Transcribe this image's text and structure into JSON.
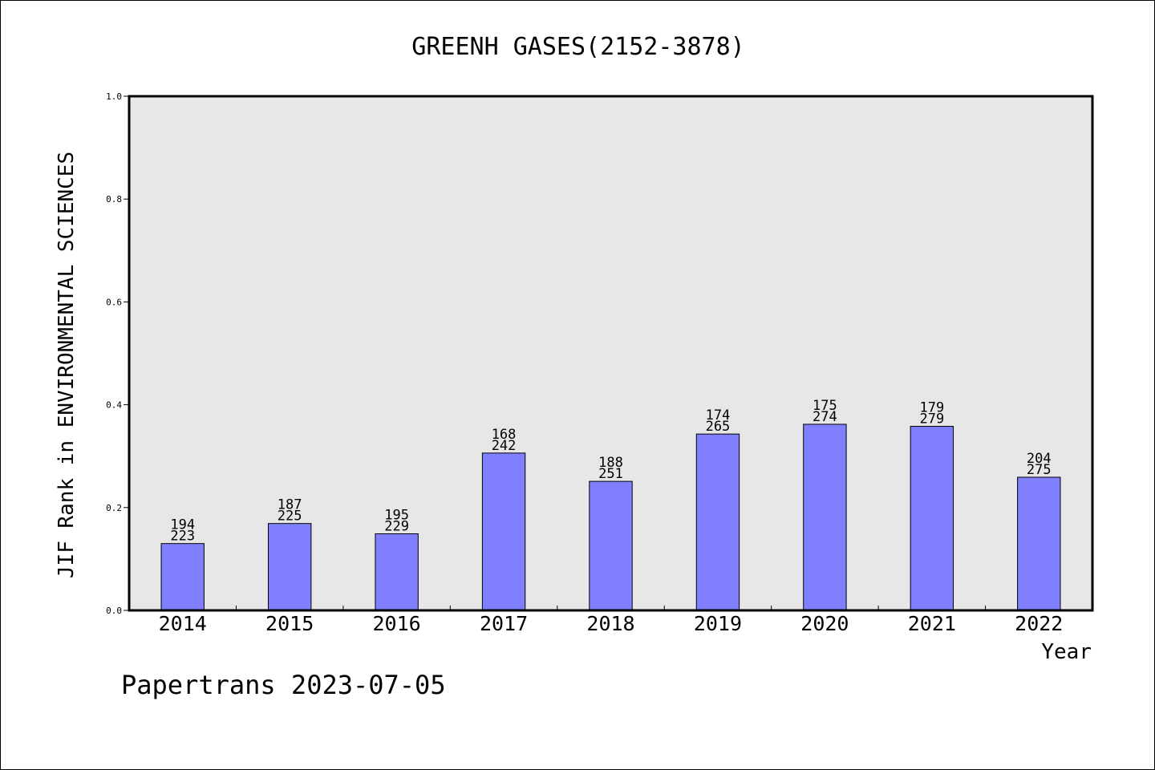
{
  "chart_data": {
    "type": "bar",
    "title": "GREENH GASES(2152-3878)",
    "xlabel": "Year",
    "ylabel": "JIF Rank in ENVIRONMENTAL SCIENCES",
    "categories": [
      "2014",
      "2015",
      "2016",
      "2017",
      "2018",
      "2019",
      "2020",
      "2021",
      "2022"
    ],
    "values": [
      0.13,
      0.169,
      0.149,
      0.306,
      0.251,
      0.343,
      0.362,
      0.358,
      0.259
    ],
    "ranks": [
      "194",
      "187",
      "195",
      "168",
      "188",
      "174",
      "175",
      "179",
      "204"
    ],
    "totals": [
      "223",
      "225",
      "229",
      "242",
      "251",
      "265",
      "274",
      "279",
      "275"
    ],
    "ylim": [
      0,
      1.0
    ],
    "yticks": [
      "0.0",
      "0.2",
      "0.4",
      "0.6",
      "0.8",
      "1.0"
    ],
    "grid": false,
    "colors": {
      "bar_fill": "#8080ff",
      "plot_background": "#e7e7e7",
      "axis": "#000000"
    }
  },
  "footer": {
    "text": "Papertrans 2023-07-05"
  }
}
